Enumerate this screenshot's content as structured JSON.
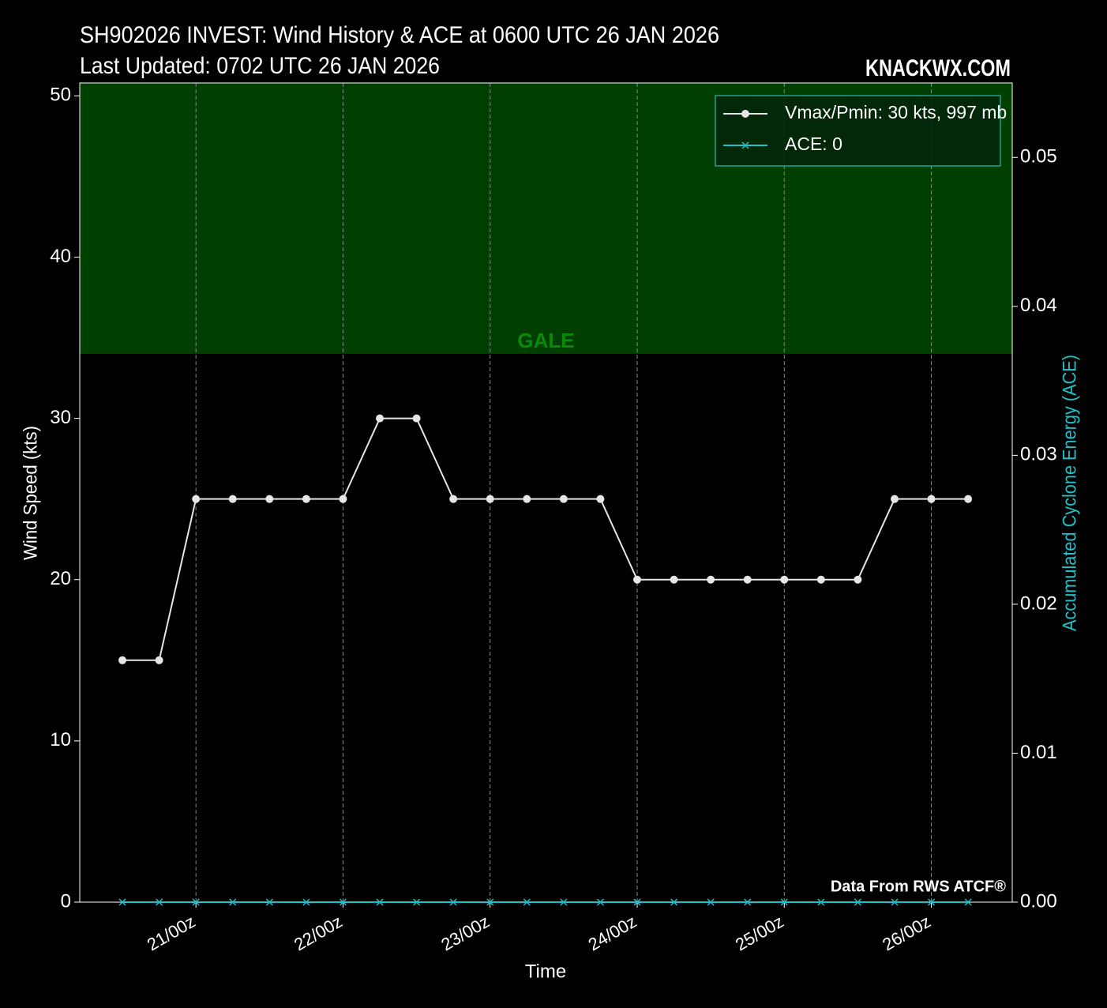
{
  "chart_data": {
    "type": "line",
    "title": "SH902026 INVEST: Wind History & ACE at 0600 UTC 26 JAN 2026",
    "subtitle": "Last Updated: 0702 UTC 26 JAN 2026",
    "brand": "KNACKWX.COM",
    "source": "Data From RWS ATCF®",
    "xlabel": "Time",
    "ylabel": "Wind Speed (kts)",
    "y2label": "Accumulated Cyclone Energy (ACE)",
    "x": [
      20.5,
      20.75,
      21,
      21.25,
      21.5,
      21.75,
      22,
      22.25,
      22.5,
      22.75,
      23,
      23.25,
      23.5,
      23.75,
      24,
      24.25,
      24.5,
      24.75,
      25,
      25.25,
      25.5,
      25.75,
      26,
      26.25
    ],
    "xlim": [
      20.21,
      26.55
    ],
    "xticks": [
      {
        "value": 21,
        "label": "21/00z"
      },
      {
        "value": 22,
        "label": "22/00z"
      },
      {
        "value": 23,
        "label": "23/00z"
      },
      {
        "value": 24,
        "label": "24/00z"
      },
      {
        "value": 25,
        "label": "25/00z"
      },
      {
        "value": 26,
        "label": "26/00z"
      }
    ],
    "ylim": [
      0,
      50.8
    ],
    "yticks": [
      0,
      10,
      20,
      30,
      40,
      50
    ],
    "y2lim": [
      0,
      0.055
    ],
    "y2ticks": [
      {
        "value": 0,
        "label": "0.00"
      },
      0.01,
      0.02,
      0.03,
      0.04,
      0.05
    ],
    "grid": "x",
    "legend": "upper right",
    "bands": [
      {
        "label": "GALE",
        "from": 34,
        "color": "#003f00",
        "label_color": "#0a8a0a"
      }
    ],
    "series": [
      {
        "name": "Vmax/Pmin: 30 kts, 997 mb",
        "color": "#e6e6e6",
        "marker": "circle",
        "values": [
          15,
          15,
          25,
          25,
          25,
          25,
          25,
          30,
          30,
          25,
          25,
          25,
          25,
          25,
          20,
          20,
          20,
          20,
          20,
          20,
          20,
          25,
          25,
          25
        ]
      },
      {
        "name": "ACE: 0",
        "color": "#20c0c8",
        "marker": "x",
        "axis": "y2",
        "values": [
          0,
          0,
          0,
          0,
          0,
          0,
          0,
          0,
          0,
          0,
          0,
          0,
          0,
          0,
          0,
          0,
          0,
          0,
          0,
          0,
          0,
          0,
          0,
          0
        ]
      }
    ]
  }
}
